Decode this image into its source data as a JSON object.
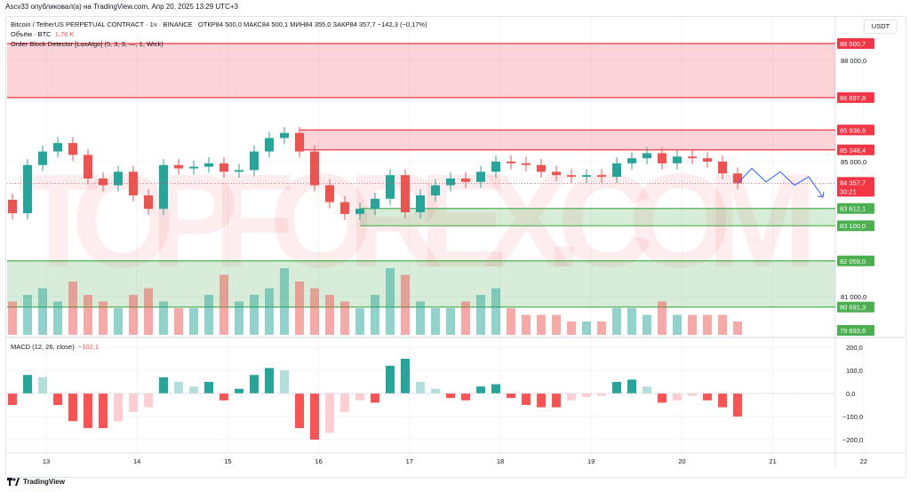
{
  "header": {
    "published": "Ascv33 опубликовал(а) на TradingView.com, Апр 20, 2025 13:29 UTC+3",
    "symbol_line": "Bitcoin / TetherUS PERPETUAL CONTRACT · 1ч · BINANCE",
    "ohlc": "ОТКР84 500,0  МАКС84 500,1  МИН84 355,0  ЗАКР84 357,7  −142,3 (−0,17%)",
    "volume_label": "Объём · BTC",
    "volume_value": "1,76 K",
    "indicator": "Order Block Detector [LuxAlgo] (5, 3, 3, —, 1, Wick)",
    "macd_label": "MACD (12, 26, close)",
    "macd_value": "−102,1",
    "currency": "USDT"
  },
  "watermark": "TOPFOREX.COM",
  "footer": {
    "brand": "TradingView"
  },
  "colors": {
    "up": "#26a69a",
    "down": "#ef5350",
    "bear_zone": "#f23645",
    "bull_zone": "#4caf50",
    "forecast": "#2962ff"
  },
  "chart_data": {
    "type": "candlestick",
    "interval": "4 points per day-ish (aggregated)",
    "closes": [
      83470,
      84900,
      85300,
      85550,
      85200,
      84500,
      84300,
      84700,
      84000,
      83600,
      84900,
      84800,
      84850,
      84950,
      84700,
      84750,
      85300,
      85700,
      85850,
      85300,
      84300,
      83800,
      83450,
      83600,
      83900,
      84600,
      83500,
      84000,
      84300,
      84500,
      84400,
      84700,
      85000,
      84950,
      84900,
      84700,
      84600,
      84550,
      84600,
      84550,
      84950,
      85100,
      85250,
      84950,
      85150,
      85100,
      85000,
      84650,
      84357.7
    ],
    "volume": [
      0.5,
      0.6,
      0.7,
      0.5,
      0.8,
      0.6,
      0.5,
      0.4,
      0.6,
      0.7,
      0.5,
      0.4,
      0.4,
      0.6,
      0.9,
      0.5,
      0.6,
      0.7,
      1.0,
      0.8,
      0.7,
      0.6,
      0.5,
      0.4,
      0.6,
      1.0,
      0.9,
      0.5,
      0.4,
      0.4,
      0.5,
      0.6,
      0.7,
      0.4,
      0.3,
      0.3,
      0.3,
      0.2,
      0.2,
      0.2,
      0.4,
      0.4,
      0.3,
      0.5,
      0.3,
      0.3,
      0.3,
      0.3,
      0.2
    ],
    "macd_hist": [
      -50,
      80,
      70,
      -50,
      -120,
      -150,
      -150,
      -120,
      -80,
      -60,
      70,
      50,
      30,
      50,
      -30,
      20,
      80,
      110,
      100,
      -150,
      -200,
      -170,
      -80,
      -30,
      -40,
      120,
      150,
      50,
      20,
      -20,
      -30,
      30,
      40,
      -20,
      -50,
      -60,
      -60,
      -30,
      -15,
      -10,
      50,
      60,
      30,
      -40,
      -30,
      -10,
      -30,
      -60,
      -100
    ],
    "price_ticks": [
      "88 000,0",
      "85 000,0",
      "81 000,0"
    ],
    "macd_ticks": [
      {
        "v": 200,
        "t": "200,0"
      },
      {
        "v": 100,
        "t": "100,0"
      },
      {
        "v": 0,
        "t": "0,0"
      },
      {
        "v": -100,
        "t": "−100,0"
      },
      {
        "v": -200,
        "t": "−200,0"
      }
    ],
    "x_ticks": [
      "13",
      "14",
      "15",
      "16",
      "17",
      "18",
      "19",
      "20",
      "21",
      "22"
    ],
    "zones": [
      {
        "type": "bear",
        "top": 88500.7,
        "bottom": 86897.8,
        "top_label": "88 500,7",
        "bottom_label": "86 897,8",
        "start": 0
      },
      {
        "type": "bear",
        "top": 85936.6,
        "bottom": 85348.4,
        "top_label": "85 936,6",
        "bottom_label": "85 348,4",
        "start": 19
      },
      {
        "type": "bull",
        "top": 83612.1,
        "bottom": 83100.0,
        "top_label": "83 612,1",
        "bottom_label": "83 100,0",
        "start": 23
      },
      {
        "type": "bull",
        "top": 82059.0,
        "bottom": 80691.3,
        "top_label": "82 059,0",
        "bottom_label": "80 691,3",
        "start": 0
      }
    ],
    "last_price_label": "84 357,7",
    "countdown": "30:21",
    "low_label": "79 693,6",
    "forecast_path": [
      84357.7,
      84800,
      84400,
      84700,
      84300,
      84550,
      83950
    ]
  }
}
